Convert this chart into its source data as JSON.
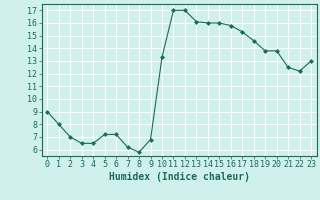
{
  "x": [
    0,
    1,
    2,
    3,
    4,
    5,
    6,
    7,
    8,
    9,
    10,
    11,
    12,
    13,
    14,
    15,
    16,
    17,
    18,
    19,
    20,
    21,
    22,
    23
  ],
  "y": [
    9,
    8,
    7,
    6.5,
    6.5,
    7.2,
    7.2,
    6.2,
    5.8,
    6.8,
    13.3,
    17.0,
    17.0,
    16.1,
    16.0,
    16.0,
    15.8,
    15.3,
    14.6,
    13.8,
    13.8,
    12.5,
    12.2,
    13.0
  ],
  "line_color": "#1a6b5a",
  "marker": "D",
  "marker_size": 2,
  "bg_color": "#cff0ec",
  "xlabel": "Humidex (Indice chaleur)",
  "xlim": [
    -0.5,
    23.5
  ],
  "ylim": [
    5.5,
    17.5
  ],
  "yticks": [
    6,
    7,
    8,
    9,
    10,
    11,
    12,
    13,
    14,
    15,
    16,
    17
  ],
  "xticks": [
    0,
    1,
    2,
    3,
    4,
    5,
    6,
    7,
    8,
    9,
    10,
    11,
    12,
    13,
    14,
    15,
    16,
    17,
    18,
    19,
    20,
    21,
    22,
    23
  ],
  "grid_color": "#ffffff",
  "tick_color": "#1a6b5a",
  "label_color": "#1a6b5a",
  "tick_fontsize": 6,
  "xlabel_fontsize": 7
}
